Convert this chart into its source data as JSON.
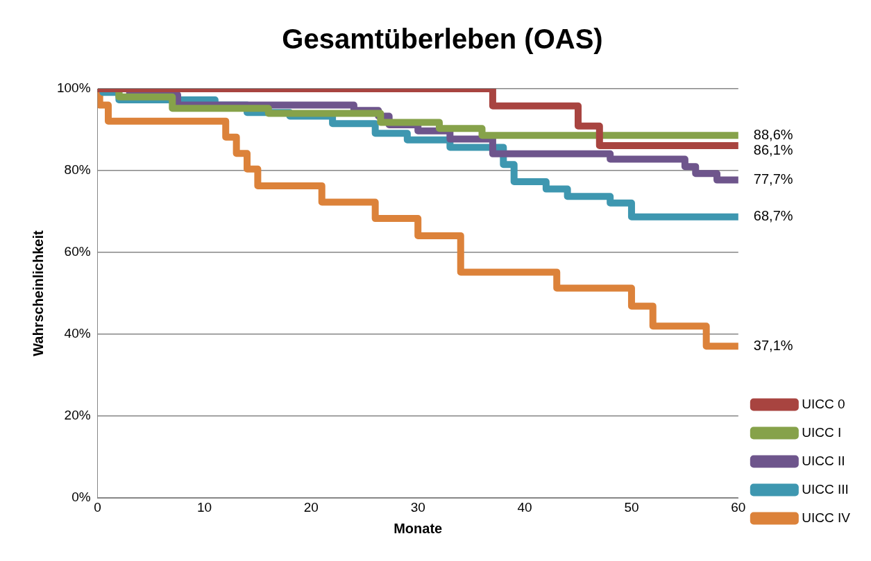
{
  "chart_data": {
    "type": "step",
    "title": "Gesamtüberleben (OAS)",
    "xlabel": "Monate",
    "ylabel": "Wahrscheinlichkeit",
    "xlim": [
      0,
      60
    ],
    "xticks": [
      0,
      10,
      20,
      30,
      40,
      50,
      60
    ],
    "ylim": [
      0,
      100
    ],
    "yticks": [
      {
        "value": 0,
        "label": "0%"
      },
      {
        "value": 20,
        "label": "20%"
      },
      {
        "value": 40,
        "label": "40%"
      },
      {
        "value": 60,
        "label": "60%"
      },
      {
        "value": 80,
        "label": "80%"
      },
      {
        "value": 100,
        "label": "100%"
      }
    ],
    "grid": "y",
    "legend": "right",
    "marker": "none",
    "line_style": "solid",
    "series": [
      {
        "name": "UICC 0",
        "color": "#a84440",
        "x": [
          0,
          37,
          45,
          47,
          60
        ],
        "values": [
          100,
          95.8,
          90.9,
          86.1,
          86.1
        ],
        "value_labels": [
          null,
          null,
          null,
          null,
          "86,1%"
        ]
      },
      {
        "name": "UICC I",
        "color": "#86a24a",
        "x": [
          0,
          2,
          7,
          16,
          26.5,
          32,
          36,
          60
        ],
        "values": [
          100,
          98,
          95.2,
          94,
          91.8,
          90.3,
          88.6,
          88.6
        ],
        "value_labels": [
          null,
          null,
          null,
          null,
          null,
          null,
          null,
          "88,6%"
        ]
      },
      {
        "name": "UICC II",
        "color": "#6e558c",
        "x": [
          0,
          3,
          7.5,
          24,
          26.3,
          27.3,
          30,
          33,
          37,
          48,
          55,
          56,
          58,
          60
        ],
        "values": [
          100,
          98.5,
          96,
          94.7,
          93.3,
          91.2,
          89.7,
          87.7,
          84.1,
          82.8,
          81,
          79.3,
          77.7,
          77.7
        ],
        "value_labels": [
          null,
          null,
          null,
          null,
          null,
          null,
          null,
          null,
          null,
          null,
          null,
          null,
          null,
          "77,7%"
        ]
      },
      {
        "name": "UICC III",
        "color": "#3e97b0",
        "x": [
          0,
          0.5,
          2,
          11,
          14,
          18,
          22,
          26,
          29,
          33,
          38,
          39,
          42,
          44,
          48,
          50,
          60
        ],
        "values": [
          100,
          99.1,
          97.3,
          96,
          94.2,
          93.3,
          91.5,
          89.1,
          87.5,
          85.7,
          81.5,
          77.3,
          75.5,
          73.7,
          72.1,
          68.7,
          68.7
        ],
        "value_labels": [
          null,
          null,
          null,
          null,
          null,
          null,
          null,
          null,
          null,
          null,
          null,
          null,
          null,
          null,
          null,
          null,
          "68,7%"
        ]
      },
      {
        "name": "UICC IV",
        "color": "#dc823a",
        "x": [
          0,
          0.2,
          1,
          12,
          13,
          14,
          15,
          21,
          26,
          30,
          34,
          43,
          50,
          52,
          57,
          60
        ],
        "values": [
          100,
          96,
          92.1,
          88.2,
          84.2,
          80.4,
          76.3,
          72.3,
          68.3,
          64.1,
          55.2,
          51.3,
          46.9,
          42,
          37.1,
          37.1
        ],
        "value_labels": [
          null,
          null,
          null,
          null,
          null,
          null,
          null,
          null,
          null,
          null,
          null,
          null,
          null,
          null,
          null,
          "37,1%"
        ]
      }
    ]
  }
}
